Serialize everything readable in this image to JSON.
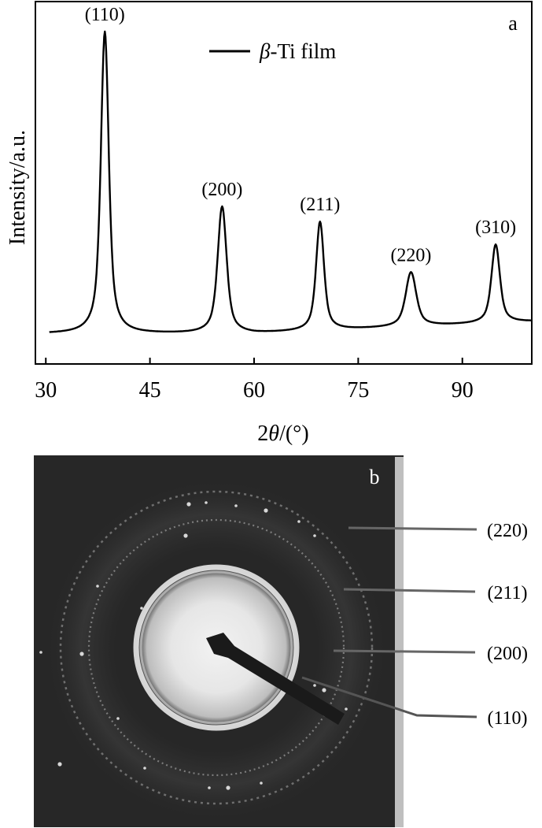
{
  "panel_a": {
    "label": "a",
    "ylabel": "Intensity/a.u.",
    "xlabel_prefix": "2",
    "xlabel_symbol": "θ",
    "xlabel_suffix": "/(°)",
    "legend_symbol": "β",
    "legend_suffix": "-Ti film"
  },
  "chart_data": {
    "type": "line",
    "xlim": [
      28.5,
      100
    ],
    "ylim": [
      -10,
      110
    ],
    "xticks": [
      30,
      45,
      60,
      75,
      90
    ],
    "grid": false,
    "legend": "top-center",
    "baseline": 0,
    "series": [
      {
        "name": "β-Ti film",
        "peaks": [
          {
            "label": "(110)",
            "x": 38.5,
            "height": 100,
            "width": 0.75
          },
          {
            "label": "(200)",
            "x": 55.4,
            "height": 42,
            "width": 0.85
          },
          {
            "label": "(211)",
            "x": 69.5,
            "height": 36,
            "width": 0.75
          },
          {
            "label": "(220)",
            "x": 82.6,
            "height": 18,
            "width": 1.0
          },
          {
            "label": "(310)",
            "x": 94.8,
            "height": 26,
            "width": 0.8
          }
        ]
      }
    ]
  },
  "panel_b": {
    "label": "b",
    "ring_labels": [
      "(220)",
      "(211)",
      "(200)",
      "(110)"
    ]
  }
}
